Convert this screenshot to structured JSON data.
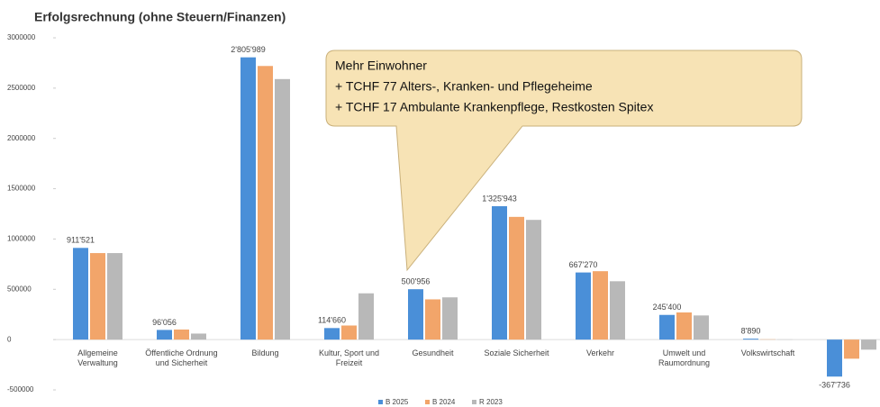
{
  "chart_data": {
    "type": "bar",
    "title": "Erfolgsrechnung (ohne Steuern/Finanzen)",
    "annotation": [
      "Mehr Einwohner",
      "+ TCHF 77 Alters-, Kranken- und Pflegeheime",
      "+ TCHF 17 Ambulante Krankenpflege, Restkosten Spitex"
    ],
    "categories": [
      "Allgemeine Verwaltung",
      "Öffentliche Ordnung und Sicherheit",
      "Bildung",
      "Kultur, Sport und Freizeit",
      "Gesundheit",
      "Soziale Sicherheit",
      "Verkehr",
      "Umwelt und Raumordnung",
      "Volkswirtschaft",
      null
    ],
    "series": [
      {
        "name": "B 2025",
        "color": "#4a8fd8",
        "values": [
          911521,
          96056,
          2805989,
          114660,
          500956,
          1325943,
          667270,
          245400,
          8890,
          -367736
        ],
        "value_labels": [
          "911'521",
          "96'056",
          "2'805'989",
          "114'660",
          "500'956",
          "1'325'943",
          "667'270",
          "245'400",
          "8'890",
          "-367'736"
        ]
      },
      {
        "name": "B 2024",
        "color": "#f2a56a",
        "values": [
          860000,
          100000,
          2720000,
          140000,
          400000,
          1220000,
          680000,
          270000,
          3000,
          -190000
        ]
      },
      {
        "name": "R 2023",
        "color": "#b8b8b8",
        "values": [
          860000,
          60000,
          2590000,
          460000,
          420000,
          1190000,
          580000,
          240000,
          2000,
          -100000
        ]
      }
    ],
    "ylim": [
      -500000,
      3000000
    ],
    "yticks": [
      -500000,
      0,
      500000,
      1000000,
      1500000,
      2000000,
      2500000,
      3000000
    ],
    "grid": false
  }
}
